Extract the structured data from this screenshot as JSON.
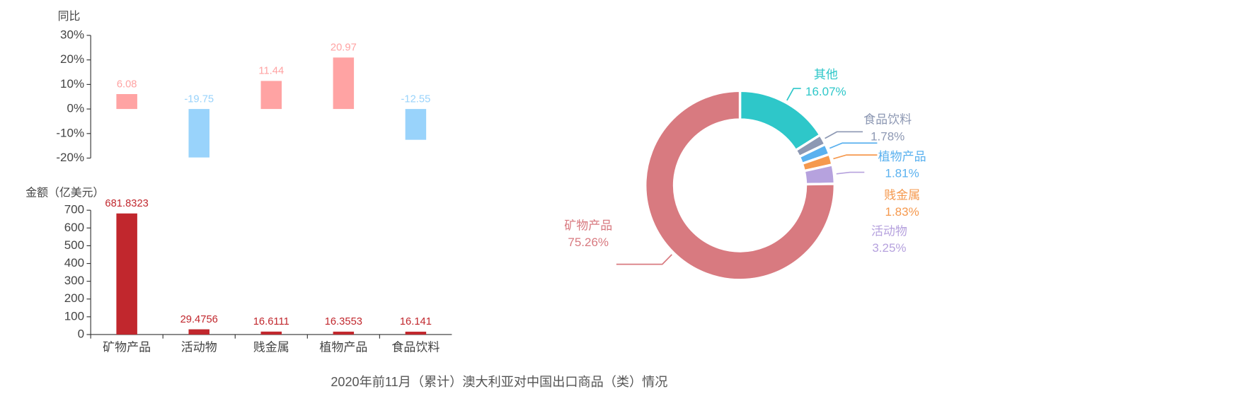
{
  "charts": [
    {
      "type": "bar",
      "y_label": "同比",
      "values": [
        6.08,
        -19.75,
        11.44,
        20.97,
        -12.55
      ],
      "colors": [
        "#ffa3a3",
        "#99d3fb",
        "#ffa3a3",
        "#ffa3a3",
        "#99d3fb"
      ],
      "ylim": [
        -20,
        30
      ],
      "yticks": [
        {
          "value": -20,
          "label": "-20%"
        },
        {
          "value": -10,
          "label": "-10%"
        },
        {
          "value": 0,
          "label": "0%"
        },
        {
          "value": 10,
          "label": "10%"
        },
        {
          "value": 20,
          "label": "20%"
        },
        {
          "value": 30,
          "label": "30%"
        }
      ]
    },
    {
      "type": "bar",
      "y_label": "金额（亿美元）",
      "categories": [
        "矿物产品",
        "活动物",
        "贱金属",
        "植物产品",
        "食品饮料"
      ],
      "values": [
        681.8323,
        29.4756,
        16.6111,
        16.3553,
        16.141
      ],
      "color": "#c1272d",
      "label_color": "#c1272d",
      "ylim": [
        0,
        700
      ],
      "yticks": [
        0,
        100,
        200,
        300,
        400,
        500,
        600,
        700
      ]
    },
    {
      "type": "pie",
      "categories": [
        "其他",
        "食品饮料",
        "植物产品",
        "贱金属",
        "活动物",
        "矿物产品"
      ],
      "values": [
        16.07,
        1.78,
        1.81,
        1.83,
        3.25,
        75.26
      ],
      "value_labels": [
        "16.07%",
        "1.78%",
        "1.81%",
        "1.83%",
        "3.25%",
        "75.26%"
      ],
      "colors": [
        "#2ec7c9",
        "#8d98b3",
        "#5ab1ef",
        "#f5994e",
        "#b6a2de",
        "#d87a80"
      ]
    }
  ],
  "caption": "2020年前11月（累计）澳大利亚对中国出口商品（类）情况"
}
